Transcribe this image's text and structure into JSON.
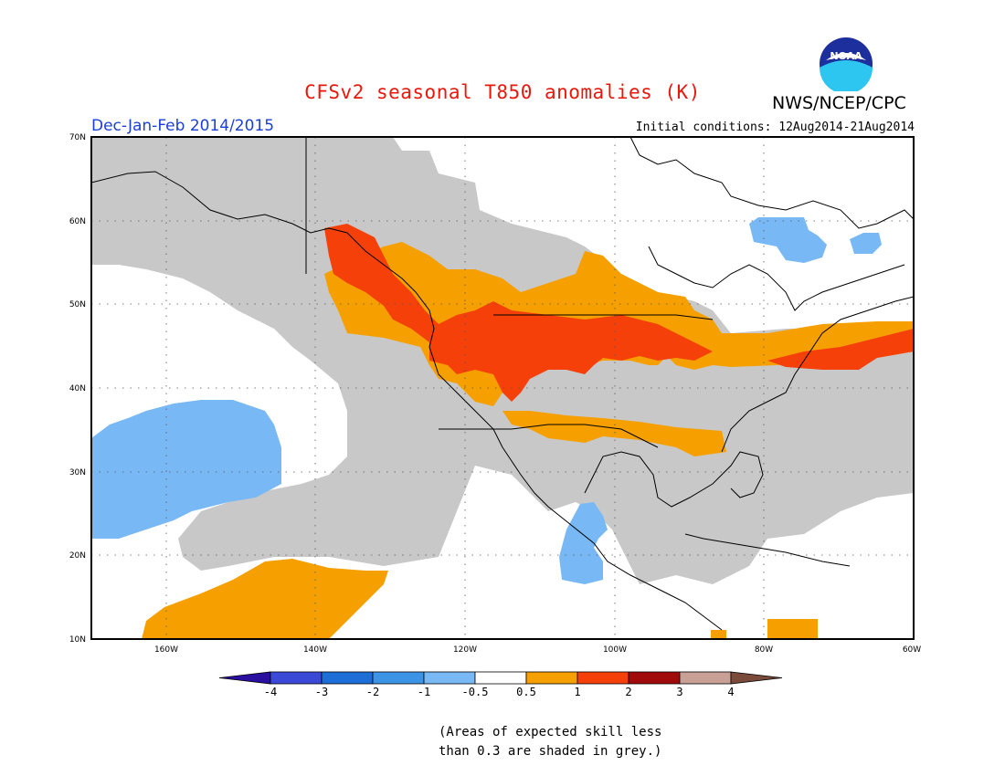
{
  "header": {
    "title": "CFSv2 seasonal T850 anomalies (K)",
    "agency": "NWS/NCEP/CPC",
    "logo_text": "NOAA",
    "season": "Dec-Jan-Feb 2014/2015",
    "initial_conditions": "Initial conditions: 12Aug2014-21Aug2014"
  },
  "map": {
    "lat_ticks": [
      "70N",
      "60N",
      "50N",
      "40N",
      "30N",
      "20N",
      "10N"
    ],
    "lon_ticks": [
      "160W",
      "140W",
      "120W",
      "100W",
      "80W",
      "60W"
    ],
    "lat_range": [
      10,
      70
    ],
    "lon_range": [
      -170,
      -60
    ],
    "colors": {
      "grey": "#c8c8c8",
      "light_blue": "#78b9f5",
      "orange": "#f5a000",
      "red_orange": "#f5400a",
      "coast": "#000000"
    }
  },
  "legend": {
    "labels": [
      "-4",
      "-3",
      "-2",
      "-1",
      "-0.5",
      "0.5",
      "1",
      "2",
      "3",
      "4"
    ],
    "colors": [
      "#2a0fa0",
      "#3b4ad6",
      "#1e6ed8",
      "#3d94e6",
      "#78b9f5",
      "#ffffff",
      "#f5a000",
      "#f5400a",
      "#a00a0a",
      "#c8a096",
      "#7a4a3a"
    ]
  },
  "footnote": {
    "line1": "(Areas of expected skill less",
    "line2": "than 0.3 are shaded in grey.)"
  }
}
